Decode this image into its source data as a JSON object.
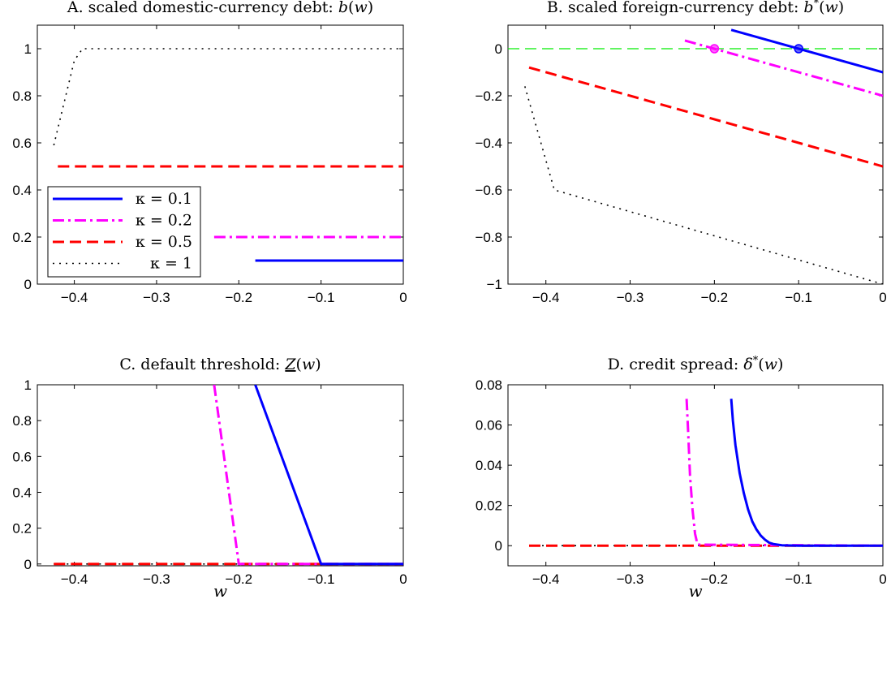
{
  "chart_data": [
    {
      "panel": "A",
      "type": "line",
      "title_prefix": "A. scaled domestic-currency debt:",
      "title_math": "b(w)",
      "xlabel": "",
      "ylabel": "",
      "xlim": [
        -0.445,
        0
      ],
      "ylim": [
        0,
        1.1
      ],
      "xticks": [
        -0.4,
        -0.3,
        -0.2,
        -0.1,
        0
      ],
      "xtick_labels": [
        "−0.4",
        "−0.3",
        "−0.2",
        "−0.1",
        "0"
      ],
      "yticks": [
        0,
        0.2,
        0.4,
        0.6,
        0.8,
        1
      ],
      "ytick_labels": [
        "0",
        "0.2",
        "0.4",
        "0.6",
        "0.8",
        "1"
      ],
      "legend": {
        "placement": "bottom-left",
        "entries": [
          "κ = 0.1",
          "κ = 0.2",
          "κ = 0.5",
          "κ = 1"
        ]
      },
      "series": [
        {
          "name": "κ = 0.1",
          "color": "#0000ff",
          "style": "solid",
          "x": [
            -0.18,
            0
          ],
          "y": [
            0.1,
            0.1
          ]
        },
        {
          "name": "κ = 0.2",
          "color": "#ff00ff",
          "style": "dashdot",
          "x": [
            -0.23,
            0
          ],
          "y": [
            0.2,
            0.2
          ]
        },
        {
          "name": "κ = 0.5",
          "color": "#ff0000",
          "style": "dashed",
          "x": [
            -0.42,
            0
          ],
          "y": [
            0.5,
            0.5
          ]
        },
        {
          "name": "κ = 1",
          "color": "#000000",
          "style": "dotted",
          "x": [
            -0.425,
            -0.4,
            -0.39,
            0
          ],
          "y": [
            0.59,
            0.95,
            1.0,
            1.0
          ]
        }
      ]
    },
    {
      "panel": "B",
      "type": "line",
      "title_prefix": "B. scaled foreign-currency debt:",
      "title_math": "b*(w)",
      "xlabel": "",
      "ylabel": "",
      "xlim": [
        -0.445,
        0
      ],
      "ylim": [
        -1,
        0.1
      ],
      "xticks": [
        -0.4,
        -0.3,
        -0.2,
        -0.1,
        0
      ],
      "xtick_labels": [
        "−0.4",
        "−0.3",
        "−0.2",
        "−0.1",
        "0"
      ],
      "yticks": [
        -1,
        -0.8,
        -0.6,
        -0.4,
        -0.2,
        0
      ],
      "ytick_labels": [
        "−1",
        "−0.8",
        "−0.6",
        "−0.4",
        "−0.2",
        "0"
      ],
      "reference_line": {
        "y": 0,
        "color": "#00ee00",
        "style": "dashed"
      },
      "markers": [
        {
          "x": -0.2,
          "y": 0,
          "color": "#ff00ff"
        },
        {
          "x": -0.1,
          "y": 0,
          "color": "#0000ff"
        }
      ],
      "series": [
        {
          "name": "κ = 0.1",
          "color": "#0000ff",
          "style": "solid",
          "x": [
            -0.18,
            0
          ],
          "y": [
            0.08,
            -0.1
          ]
        },
        {
          "name": "κ = 0.2",
          "color": "#ff00ff",
          "style": "dashdot",
          "x": [
            -0.235,
            0
          ],
          "y": [
            0.035,
            -0.2
          ]
        },
        {
          "name": "κ = 0.5",
          "color": "#ff0000",
          "style": "dashed",
          "x": [
            -0.42,
            0
          ],
          "y": [
            -0.08,
            -0.5
          ]
        },
        {
          "name": "κ = 1",
          "color": "#000000",
          "style": "dotted",
          "x": [
            -0.425,
            -0.39,
            0
          ],
          "y": [
            -0.16,
            -0.6,
            -1.0
          ]
        }
      ]
    },
    {
      "panel": "C",
      "type": "line",
      "title_prefix": "C. default threshold:",
      "title_math": "Z(w)",
      "xlabel": "w",
      "ylabel": "",
      "xlim": [
        -0.445,
        0
      ],
      "ylim": [
        -0.01,
        1
      ],
      "xticks": [
        -0.4,
        -0.3,
        -0.2,
        -0.1,
        0
      ],
      "xtick_labels": [
        "−0.4",
        "−0.3",
        "−0.2",
        "−0.1",
        "0"
      ],
      "yticks": [
        0,
        0.2,
        0.4,
        0.6,
        0.8,
        1
      ],
      "ytick_labels": [
        "0",
        "0.2",
        "0.4",
        "0.6",
        "0.8",
        "1"
      ],
      "series": [
        {
          "name": "κ = 1",
          "color": "#000000",
          "style": "dotted",
          "x": [
            -0.425,
            0
          ],
          "y": [
            0,
            0
          ]
        },
        {
          "name": "κ = 0.5",
          "color": "#ff0000",
          "style": "dashed",
          "x": [
            -0.425,
            0
          ],
          "y": [
            0,
            0
          ]
        },
        {
          "name": "κ = 0.2",
          "color": "#ff00ff",
          "style": "dashdot",
          "x": [
            -0.23,
            -0.2,
            0
          ],
          "y": [
            1.0,
            0,
            0
          ]
        },
        {
          "name": "κ = 0.1",
          "color": "#0000ff",
          "style": "solid",
          "x": [
            -0.18,
            -0.1,
            0
          ],
          "y": [
            1.0,
            0,
            0
          ]
        }
      ]
    },
    {
      "panel": "D",
      "type": "line",
      "title_prefix": "D. credit spread:",
      "title_math": "δ*(w)",
      "xlabel": "w",
      "ylabel": "",
      "xlim": [
        -0.445,
        0
      ],
      "ylim": [
        -0.01,
        0.08
      ],
      "xticks": [
        -0.4,
        -0.3,
        -0.2,
        -0.1,
        0
      ],
      "xtick_labels": [
        "−0.4",
        "−0.3",
        "−0.2",
        "−0.1",
        "0"
      ],
      "yticks": [
        0,
        0.02,
        0.04,
        0.06,
        0.08
      ],
      "ytick_labels": [
        "0",
        "0.02",
        "0.04",
        "0.06",
        "0.08"
      ],
      "series": [
        {
          "name": "κ = 1",
          "color": "#000000",
          "style": "dotted",
          "x": [
            -0.42,
            0
          ],
          "y": [
            0,
            0
          ]
        },
        {
          "name": "κ = 0.5",
          "color": "#ff0000",
          "style": "dashed",
          "x": [
            -0.42,
            0
          ],
          "y": [
            0,
            0
          ]
        },
        {
          "name": "κ = 0.2",
          "color": "#ff00ff",
          "style": "dashdot",
          "x": [
            -0.233,
            -0.231,
            -0.229,
            -0.226,
            -0.223,
            -0.22,
            0
          ],
          "y": [
            0.073,
            0.055,
            0.035,
            0.018,
            0.006,
            0.0005,
            0
          ]
        },
        {
          "name": "κ = 0.1",
          "color": "#0000ff",
          "style": "solid",
          "x": [
            -0.18,
            -0.178,
            -0.175,
            -0.17,
            -0.165,
            -0.16,
            -0.155,
            -0.15,
            -0.145,
            -0.14,
            -0.135,
            -0.13,
            -0.12,
            -0.1,
            0
          ],
          "y": [
            0.073,
            0.062,
            0.05,
            0.036,
            0.026,
            0.018,
            0.012,
            0.008,
            0.005,
            0.003,
            0.0015,
            0.0008,
            0.0002,
            0,
            0
          ]
        }
      ]
    }
  ]
}
